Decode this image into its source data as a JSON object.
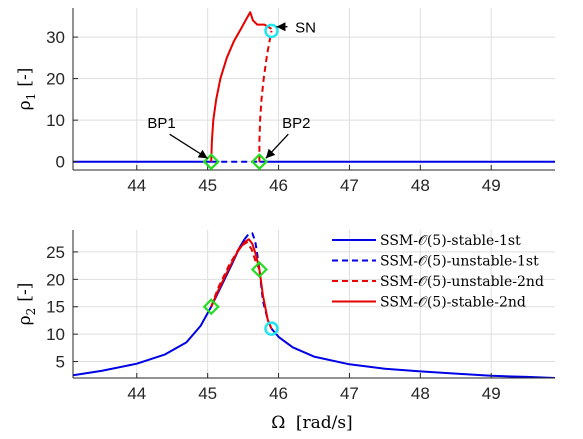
{
  "chart_data": [
    {
      "type": "line",
      "ylabel_symbol": "ρ",
      "ylabel_sub": "1",
      "ylabel_unit": "[-]",
      "xlim": [
        43.1,
        49.9
      ],
      "ylim": [
        -2,
        37
      ],
      "xticks": [
        44,
        45,
        46,
        47,
        48,
        49
      ],
      "yticks": [
        0,
        10,
        20,
        30
      ],
      "grid": true,
      "series": [
        {
          "name": "SSM-O(5)-stable-1st",
          "color": "#0000e6",
          "dash": "solid",
          "x": [
            43.1,
            45.05
          ],
          "y": [
            0,
            0
          ]
        },
        {
          "name": "SSM-O(5)-unstable-1st",
          "color": "#0000e6",
          "dash": "dashed",
          "x": [
            45.05,
            45.73
          ],
          "y": [
            0,
            0
          ]
        },
        {
          "name": "SSM-O(5)-stable-1st",
          "color": "#0000e6",
          "dash": "solid",
          "x": [
            45.73,
            49.9
          ],
          "y": [
            0,
            0
          ]
        },
        {
          "name": "SSM-O(5)-stable-2nd",
          "color": "#e60000",
          "dash": "solid",
          "x": [
            45.05,
            45.06,
            45.08,
            45.12,
            45.18,
            45.27,
            45.37,
            45.47,
            45.55,
            45.6,
            45.64,
            45.7,
            45.8,
            45.9
          ],
          "y": [
            0,
            5,
            10,
            15,
            20,
            25,
            29,
            32,
            34.5,
            36,
            34,
            33,
            33,
            32
          ]
        },
        {
          "name": "SSM-O(5)-unstable-2nd",
          "color": "#e60000",
          "dash": "dashed",
          "x": [
            45.73,
            45.73,
            45.74,
            45.76,
            45.79,
            45.84,
            45.9
          ],
          "y": [
            0,
            5,
            10,
            15,
            20,
            26,
            31.5
          ]
        }
      ],
      "markers": [
        {
          "type": "diamond",
          "x": 45.05,
          "y": 0,
          "color": "#22dd22"
        },
        {
          "type": "diamond",
          "x": 45.73,
          "y": 0,
          "color": "#22dd22"
        },
        {
          "type": "circle",
          "x": 45.9,
          "y": 31.5,
          "color": "#22e5ee"
        }
      ],
      "annotations": [
        {
          "text": "SN",
          "x": 46.38,
          "y": 32.5,
          "arrow_to": [
            45.97,
            32.5
          ]
        },
        {
          "text": "BP1",
          "x": 44.35,
          "y": 9.5,
          "arrow_to": [
            45.0,
            0.8
          ]
        },
        {
          "text": "BP2",
          "x": 46.25,
          "y": 9.5,
          "arrow_to": [
            45.82,
            0.8
          ]
        }
      ]
    },
    {
      "type": "line",
      "ylabel_symbol": "ρ",
      "ylabel_sub": "2",
      "ylabel_unit": "[-]",
      "xlim": [
        43.1,
        49.9
      ],
      "ylim": [
        2,
        29
      ],
      "xticks": [
        44,
        45,
        46,
        47,
        48,
        49
      ],
      "yticks": [
        5,
        10,
        15,
        20,
        25
      ],
      "grid": true,
      "series": [
        {
          "name": "SSM-O(5)-stable-1st",
          "color": "#0000e6",
          "dash": "solid",
          "x": [
            43.1,
            43.5,
            44.0,
            44.4,
            44.7,
            44.9,
            45.05,
            45.2,
            45.35,
            45.45,
            45.52
          ],
          "y": [
            2.5,
            3.3,
            4.6,
            6.3,
            8.5,
            11.5,
            15.0,
            19.0,
            23.0,
            25.8,
            27.3
          ]
        },
        {
          "name": "SSM-O(5)-unstable-1st",
          "color": "#0000e6",
          "dash": "dashed",
          "x": [
            45.52,
            45.58,
            45.63,
            45.67,
            45.7,
            45.73,
            45.78,
            45.85,
            45.9
          ],
          "y": [
            27.3,
            28.3,
            28.4,
            27.0,
            24.5,
            21.8,
            16.0,
            12.5,
            11.0
          ]
        },
        {
          "name": "SSM-O(5)-stable-1st",
          "color": "#0000e6",
          "dash": "solid",
          "x": [
            45.9,
            46.0,
            46.2,
            46.5,
            47.0,
            47.5,
            48.0,
            48.5,
            49.0,
            49.5,
            49.9
          ],
          "y": [
            11.0,
            9.5,
            7.6,
            5.9,
            4.5,
            3.7,
            3.2,
            2.8,
            2.4,
            2.2,
            2.0
          ]
        },
        {
          "name": "SSM-O(5)-unstable-2nd",
          "color": "#e60000",
          "dash": "dashed",
          "x": [
            45.05,
            45.15,
            45.3,
            45.45,
            45.55,
            45.62,
            45.67,
            45.73
          ],
          "y": [
            15.0,
            18.5,
            22.5,
            25.8,
            26.8,
            25.5,
            23.5,
            21.8
          ]
        },
        {
          "name": "SSM-O(5)-stable-2nd",
          "color": "#e60000",
          "dash": "solid",
          "x": [
            45.05,
            45.15,
            45.3,
            45.42,
            45.52,
            45.58,
            45.63,
            45.68,
            45.73,
            45.78,
            45.85,
            45.9
          ],
          "y": [
            15.0,
            18.0,
            22.0,
            25.0,
            26.8,
            27.3,
            26.5,
            24.5,
            21.8,
            17.0,
            12.5,
            11.0
          ]
        }
      ],
      "markers": [
        {
          "type": "diamond",
          "x": 45.05,
          "y": 15.0,
          "color": "#22dd22"
        },
        {
          "type": "diamond",
          "x": 45.73,
          "y": 21.8,
          "color": "#22dd22"
        },
        {
          "type": "circle",
          "x": 45.9,
          "y": 11.0,
          "color": "#22e5ee"
        }
      ],
      "legend": {
        "placement": "right",
        "entries": [
          {
            "label": "SSM-𝒪(5)-stable-1st",
            "color": "#0000e6",
            "dash": "solid"
          },
          {
            "label": "SSM-𝒪(5)-unstable-1st",
            "color": "#0000e6",
            "dash": "dashed"
          },
          {
            "label": "SSM-𝒪(5)-unstable-2nd",
            "color": "#e60000",
            "dash": "dashed"
          },
          {
            "label": "SSM-𝒪(5)-stable-2nd",
            "color": "#e60000",
            "dash": "solid"
          }
        ]
      }
    }
  ],
  "xlabel_symbol": "Ω",
  "xlabel_unit": "[rad/s]"
}
